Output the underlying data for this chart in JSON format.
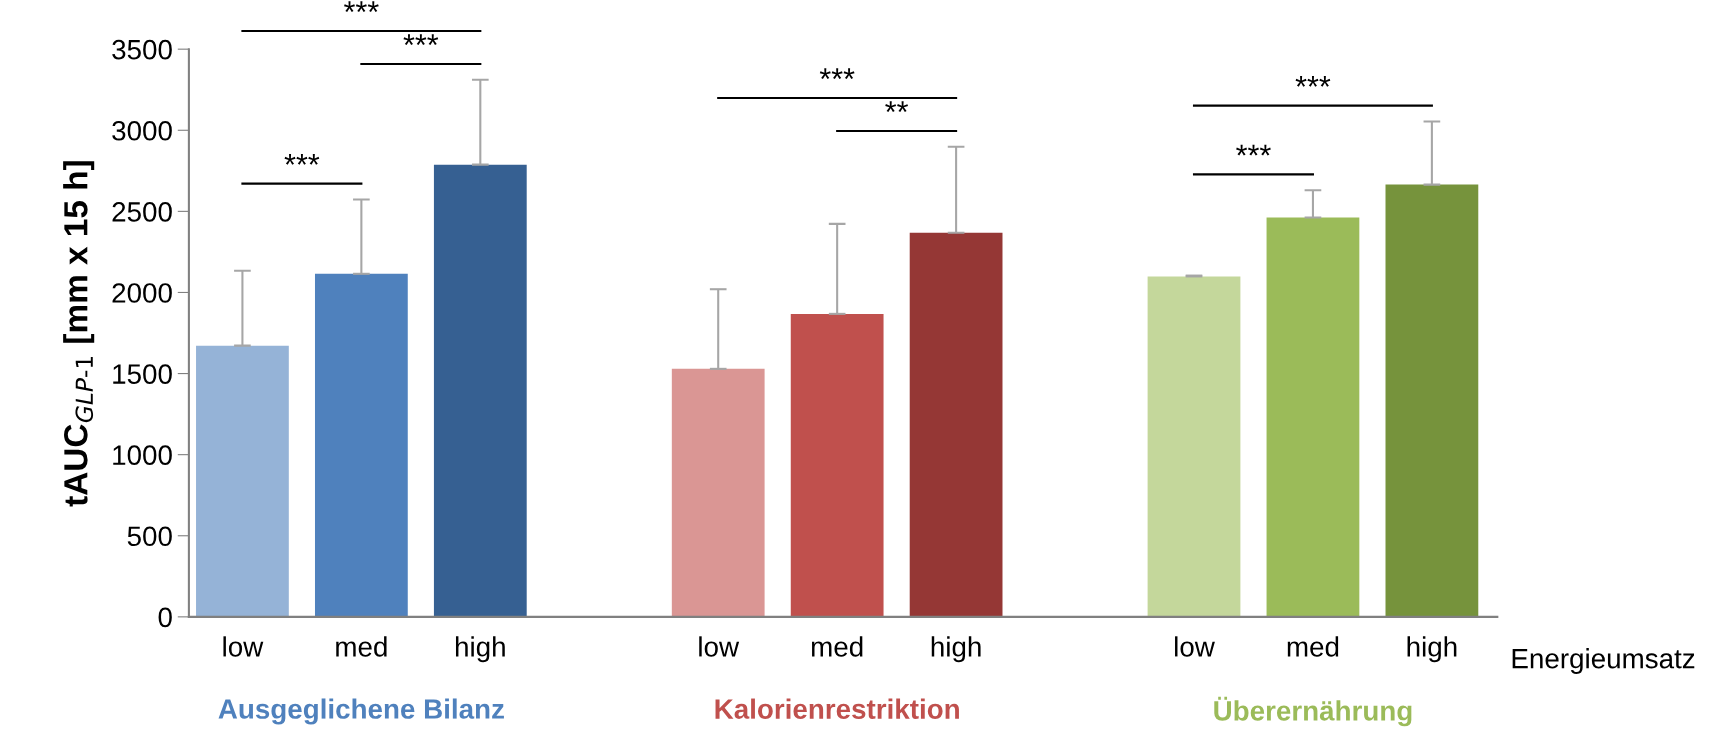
{
  "chart_data": {
    "type": "bar",
    "ylabel": "tAUC$_{GLP-1}$ [mm x 15 h]",
    "xlabel": "Energieumsatz",
    "categories": [
      "low",
      "med",
      "high",
      null,
      "low",
      "med",
      "high",
      null,
      "low",
      "med",
      "high"
    ],
    "values": [
      1672,
      2115,
      2788,
      null,
      1529,
      1868,
      2368,
      null,
      2099,
      2462,
      2665
    ],
    "errors": [
      462,
      458,
      523,
      null,
      491,
      555,
      530,
      null,
      5,
      168,
      389
    ],
    "colors": [
      "#95b3d7",
      "#4f81bd",
      "#366092",
      "#ffffff",
      "#da9694",
      "#c0504d",
      "#953735",
      "#ffffff",
      "#c4d79b",
      "#9bbb59",
      "#76933c"
    ],
    "ylim": [
      0,
      3500
    ],
    "yticks": [
      0,
      500,
      1000,
      1500,
      2000,
      2500,
      3000,
      3500
    ],
    "grid": false,
    "legend": false,
    "annotations": [
      "***",
      "***",
      "***",
      "***",
      "**",
      "***",
      "***",
      "Ausgeglichene Bilanz",
      "Kalorienrestriktion",
      "Überernährung"
    ]
  }
}
